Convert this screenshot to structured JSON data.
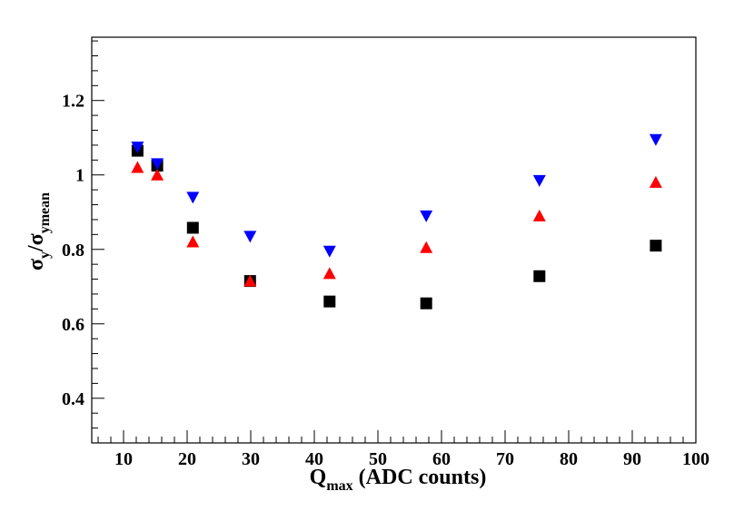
{
  "chart_data": {
    "type": "scatter",
    "xlim": [
      5,
      100
    ],
    "ylim": [
      0.28,
      1.37
    ],
    "x_ticks": [
      10,
      20,
      30,
      40,
      50,
      60,
      70,
      80,
      90,
      100
    ],
    "y_ticks": [
      0.4,
      0.6,
      0.8,
      1,
      1.2
    ],
    "x_tick_labels": [
      "10",
      "20",
      "30",
      "40",
      "50",
      "60",
      "70",
      "80",
      "90",
      "100"
    ],
    "y_tick_labels": [
      "0.4",
      "0.6",
      "0.8",
      "1",
      "1.2"
    ],
    "xlabel": {
      "main": "Q",
      "sub": "max",
      "rest": " (ADC counts)"
    },
    "ylabel": {
      "main1": "σ",
      "sub1": "y",
      "slash": "/",
      "main2": "σ",
      "sub2": "ymean"
    },
    "grid": false,
    "legend": "none",
    "series": [
      {
        "marker": "square",
        "color": "#000000",
        "x": [
          12.2,
          15.3,
          20.9,
          29.9,
          42.4,
          57.6,
          75.4,
          93.7
        ],
        "y": [
          1.065,
          1.025,
          0.858,
          0.715,
          0.66,
          0.655,
          0.728,
          0.81
        ]
      },
      {
        "marker": "triangle-up",
        "color": "#ff0000",
        "x": [
          12.2,
          15.3,
          20.9,
          29.9,
          42.4,
          57.6,
          75.4,
          93.7
        ],
        "y": [
          1.02,
          1.0,
          0.82,
          0.715,
          0.735,
          0.805,
          0.89,
          0.98
        ]
      },
      {
        "marker": "triangle-down",
        "color": "#0000ff",
        "x": [
          12.2,
          15.3,
          20.9,
          29.9,
          42.4,
          57.6,
          75.4,
          93.7
        ],
        "y": [
          1.075,
          1.03,
          0.94,
          0.835,
          0.795,
          0.89,
          0.985,
          1.095
        ]
      }
    ]
  }
}
